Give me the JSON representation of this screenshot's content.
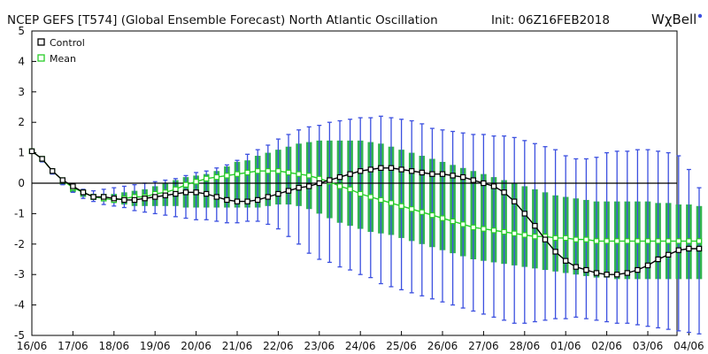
{
  "header": {
    "title": "NCEP GEFS [T574] (Global Ensemble Forecast) North Atlantic Oscillation",
    "init": "Init: 06Z16FEB2018",
    "brand": "WχBell"
  },
  "colors": {
    "spread_fill": "#32b450",
    "whisker": "#3c50e0",
    "control_line": "#000000",
    "mean_line": "#28cd28",
    "zero_line": "#000000",
    "brand_dot": "#3c50e0"
  },
  "chart_data": {
    "type": "line",
    "title": "NCEP GEFS [T574] (Global Ensemble Forecast) North Atlantic Oscillation",
    "xlabel": "",
    "ylabel": "",
    "ylim": [
      -5,
      5
    ],
    "yticks": [
      "5",
      "4",
      "3",
      "2",
      "1",
      "0",
      "-1",
      "-2",
      "-3",
      "-4",
      "-5"
    ],
    "xticks": [
      "16/06",
      "17/06",
      "18/06",
      "19/06",
      "20/06",
      "21/06",
      "22/06",
      "23/06",
      "24/06",
      "25/06",
      "26/06",
      "27/06",
      "28/06",
      "01/06",
      "02/06",
      "03/06",
      "04/06"
    ],
    "x_step_hours": 6,
    "legend": {
      "position": "top-left",
      "entries": [
        "Control",
        "Mean"
      ]
    },
    "grid": false,
    "series": [
      {
        "name": "Control",
        "values": [
          1.05,
          0.8,
          0.4,
          0.1,
          -0.1,
          -0.3,
          -0.45,
          -0.45,
          -0.5,
          -0.55,
          -0.55,
          -0.5,
          -0.45,
          -0.4,
          -0.35,
          -0.3,
          -0.3,
          -0.35,
          -0.45,
          -0.55,
          -0.6,
          -0.6,
          -0.55,
          -0.45,
          -0.35,
          -0.25,
          -0.15,
          -0.1,
          0.0,
          0.1,
          0.2,
          0.3,
          0.4,
          0.45,
          0.5,
          0.5,
          0.45,
          0.4,
          0.35,
          0.3,
          0.3,
          0.25,
          0.2,
          0.1,
          0.0,
          -0.1,
          -0.3,
          -0.6,
          -1.0,
          -1.4,
          -1.85,
          -2.25,
          -2.55,
          -2.75,
          -2.85,
          -2.95,
          -3.0,
          -3.0,
          -2.95,
          -2.85,
          -2.7,
          -2.5,
          -2.35,
          -2.2,
          -2.15,
          -2.15
        ]
      },
      {
        "name": "Mean",
        "values": [
          1.05,
          0.8,
          0.4,
          0.1,
          -0.15,
          -0.3,
          -0.45,
          -0.5,
          -0.55,
          -0.5,
          -0.45,
          -0.45,
          -0.35,
          -0.3,
          -0.2,
          -0.05,
          0.05,
          0.15,
          0.2,
          0.25,
          0.3,
          0.35,
          0.4,
          0.4,
          0.4,
          0.35,
          0.3,
          0.25,
          0.15,
          0.05,
          -0.1,
          -0.2,
          -0.35,
          -0.45,
          -0.55,
          -0.65,
          -0.75,
          -0.85,
          -0.95,
          -1.05,
          -1.15,
          -1.25,
          -1.35,
          -1.45,
          -1.5,
          -1.55,
          -1.6,
          -1.65,
          -1.7,
          -1.75,
          -1.75,
          -1.8,
          -1.8,
          -1.85,
          -1.85,
          -1.9,
          -1.9,
          -1.9,
          -1.9,
          -1.9,
          -1.9,
          -1.9,
          -1.9,
          -1.9,
          -1.9,
          -1.9
        ]
      },
      {
        "name": "spread_upper",
        "values": [
          1.0,
          0.75,
          0.35,
          0.05,
          -0.2,
          -0.3,
          -0.35,
          -0.35,
          -0.35,
          -0.3,
          -0.25,
          -0.2,
          -0.1,
          0.0,
          0.1,
          0.2,
          0.25,
          0.3,
          0.4,
          0.55,
          0.7,
          0.75,
          0.9,
          1.0,
          1.1,
          1.2,
          1.3,
          1.35,
          1.4,
          1.4,
          1.4,
          1.4,
          1.4,
          1.35,
          1.3,
          1.2,
          1.1,
          1.0,
          0.9,
          0.8,
          0.7,
          0.6,
          0.5,
          0.4,
          0.3,
          0.2,
          0.1,
          0.0,
          -0.1,
          -0.2,
          -0.3,
          -0.4,
          -0.45,
          -0.5,
          -0.55,
          -0.6,
          -0.6,
          -0.6,
          -0.6,
          -0.6,
          -0.6,
          -0.65,
          -0.65,
          -0.7,
          -0.7,
          -0.75
        ]
      },
      {
        "name": "spread_lower",
        "values": [
          1.0,
          0.7,
          0.3,
          -0.05,
          -0.3,
          -0.45,
          -0.55,
          -0.6,
          -0.65,
          -0.7,
          -0.75,
          -0.75,
          -0.75,
          -0.75,
          -0.75,
          -0.8,
          -0.8,
          -0.8,
          -0.8,
          -0.8,
          -0.8,
          -0.8,
          -0.8,
          -0.75,
          -0.7,
          -0.7,
          -0.75,
          -0.85,
          -1.0,
          -1.15,
          -1.3,
          -1.4,
          -1.5,
          -1.6,
          -1.65,
          -1.7,
          -1.8,
          -1.9,
          -2.0,
          -2.1,
          -2.2,
          -2.3,
          -2.4,
          -2.5,
          -2.55,
          -2.6,
          -2.65,
          -2.7,
          -2.75,
          -2.8,
          -2.85,
          -2.9,
          -2.95,
          -3.0,
          -3.05,
          -3.1,
          -3.1,
          -3.15,
          -3.15,
          -3.15,
          -3.15,
          -3.15,
          -3.15,
          -3.15,
          -3.15,
          -3.15
        ]
      },
      {
        "name": "whisker_upper",
        "values": [
          1.1,
          0.8,
          0.4,
          0.1,
          -0.1,
          -0.2,
          -0.25,
          -0.2,
          -0.15,
          -0.1,
          -0.05,
          0.0,
          0.05,
          0.1,
          0.15,
          0.25,
          0.35,
          0.4,
          0.5,
          0.6,
          0.75,
          0.95,
          1.1,
          1.25,
          1.45,
          1.6,
          1.75,
          1.85,
          1.9,
          2.0,
          2.05,
          2.1,
          2.15,
          2.15,
          2.2,
          2.15,
          2.1,
          2.05,
          1.95,
          1.8,
          1.75,
          1.7,
          1.65,
          1.6,
          1.6,
          1.55,
          1.55,
          1.5,
          1.4,
          1.3,
          1.2,
          1.1,
          0.9,
          0.8,
          0.8,
          0.85,
          1.0,
          1.05,
          1.05,
          1.1,
          1.1,
          1.05,
          1.0,
          0.9,
          0.45,
          -0.15
        ]
      },
      {
        "name": "whisker_lower",
        "values": [
          1.0,
          0.7,
          0.3,
          -0.05,
          -0.3,
          -0.5,
          -0.6,
          -0.7,
          -0.75,
          -0.8,
          -0.9,
          -0.95,
          -1.0,
          -1.05,
          -1.1,
          -1.15,
          -1.2,
          -1.2,
          -1.25,
          -1.3,
          -1.3,
          -1.25,
          -1.25,
          -1.35,
          -1.5,
          -1.75,
          -2.0,
          -2.3,
          -2.5,
          -2.6,
          -2.75,
          -2.85,
          -3.0,
          -3.1,
          -3.3,
          -3.4,
          -3.5,
          -3.6,
          -3.7,
          -3.8,
          -3.9,
          -4.0,
          -4.1,
          -4.2,
          -4.3,
          -4.4,
          -4.5,
          -4.6,
          -4.6,
          -4.55,
          -4.5,
          -4.45,
          -4.45,
          -4.4,
          -4.45,
          -4.5,
          -4.55,
          -4.6,
          -4.6,
          -4.65,
          -4.7,
          -4.75,
          -4.8,
          -4.85,
          -4.9,
          -4.95
        ]
      }
    ]
  }
}
